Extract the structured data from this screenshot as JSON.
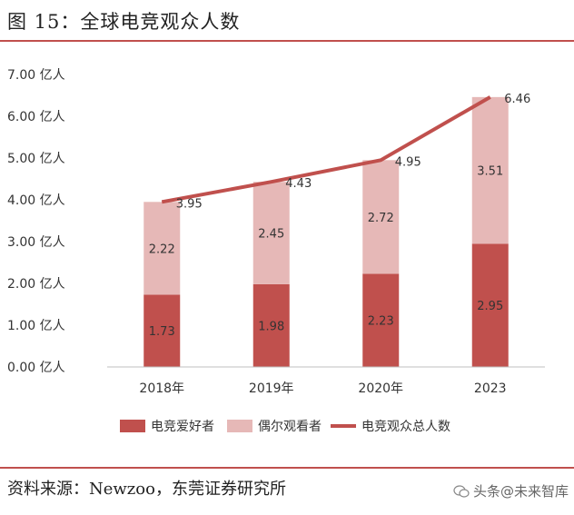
{
  "header": {
    "title": "图 15：全球电竞观众人数"
  },
  "footer": {
    "source": "资料来源：Newzoo，东莞证券研究所",
    "watermark": "头条@未来智库"
  },
  "colors": {
    "enthusiasts": "#c0504d",
    "occasional": "#e6b8b7",
    "total_line": "#c0504d",
    "rule": "#c0504d"
  },
  "chart_data": {
    "type": "bar",
    "stacked": true,
    "categories": [
      "2018年",
      "2019年",
      "2020年",
      "2023"
    ],
    "series": [
      {
        "name": "电竞爱好者",
        "values": [
          1.73,
          1.98,
          2.23,
          2.95
        ]
      },
      {
        "name": "偶尔观看者",
        "values": [
          2.22,
          2.45,
          2.72,
          3.51
        ]
      }
    ],
    "line_series": {
      "name": "电竞观众总人数",
      "values": [
        3.95,
        4.43,
        4.95,
        6.46
      ]
    },
    "y_ticks": [
      "0.00 亿人",
      "1.00 亿人",
      "2.00 亿人",
      "3.00 亿人",
      "4.00 亿人",
      "5.00 亿人",
      "6.00 亿人",
      "7.00 亿人"
    ],
    "ylim": [
      0,
      7
    ],
    "grid": false,
    "legend_position": "bottom"
  }
}
